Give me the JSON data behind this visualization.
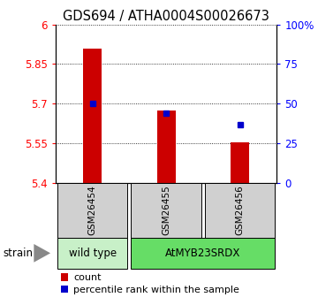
{
  "title": "GDS694 / ATHA0004S00026673",
  "samples": [
    "GSM26454",
    "GSM26455",
    "GSM26456"
  ],
  "counts": [
    5.91,
    5.675,
    5.555
  ],
  "percentiles": [
    50.0,
    44.0,
    37.0
  ],
  "ylim_left": [
    5.4,
    6.0
  ],
  "ylim_right": [
    0,
    100
  ],
  "yticks_left": [
    5.4,
    5.55,
    5.7,
    5.85,
    6.0
  ],
  "yticks_right": [
    0,
    25,
    50,
    75,
    100
  ],
  "ytick_labels_left": [
    "5.4",
    "5.55",
    "5.7",
    "5.85",
    "6"
  ],
  "ytick_labels_right": [
    "0",
    "25",
    "50",
    "75",
    "100%"
  ],
  "bar_color": "#cc0000",
  "dot_color": "#0000cc",
  "bar_width": 0.25,
  "strain_groups": [
    {
      "label": "wild type",
      "samples": [
        0
      ],
      "color": "#c8f0c8"
    },
    {
      "label": "AtMYB23SRDX",
      "samples": [
        1,
        2
      ],
      "color": "#66dd66"
    }
  ],
  "strain_label": "strain",
  "legend_count_label": "count",
  "legend_percentile_label": "percentile rank within the sample",
  "title_fontsize": 10.5,
  "tick_fontsize": 8.5,
  "sample_fontsize": 7.5,
  "strain_fontsize": 8.5,
  "legend_fontsize": 8
}
